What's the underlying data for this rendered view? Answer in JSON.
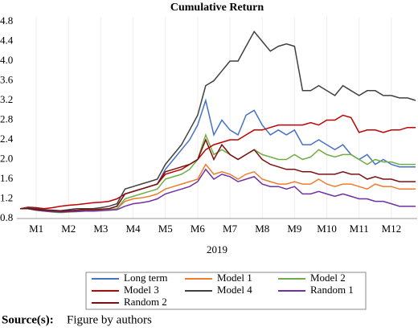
{
  "chart_data": {
    "type": "line",
    "title": "Cumulative Return",
    "x_label": "2019",
    "x": [
      0.5,
      0.75,
      1,
      1.25,
      1.5,
      1.75,
      2,
      2.25,
      2.5,
      2.75,
      3,
      3.25,
      3.5,
      3.75,
      4,
      4.25,
      4.5,
      4.75,
      5,
      5.25,
      5.5,
      5.75,
      6,
      6.25,
      6.5,
      6.75,
      7,
      7.25,
      7.5,
      7.75,
      8,
      8.25,
      8.5,
      8.75,
      9,
      9.25,
      9.5,
      9.75,
      10,
      10.25,
      10.5,
      10.75,
      11,
      11.25,
      11.5,
      11.75,
      12,
      12.25,
      12.5,
      12.75
    ],
    "xlim": [
      0.4,
      12.8
    ],
    "xticks": [
      {
        "value": 1,
        "label": "M1"
      },
      {
        "value": 2,
        "label": "M2"
      },
      {
        "value": 3,
        "label": "M3"
      },
      {
        "value": 4,
        "label": "M4"
      },
      {
        "value": 5,
        "label": "M5"
      },
      {
        "value": 6,
        "label": "M6"
      },
      {
        "value": 7,
        "label": "M7"
      },
      {
        "value": 8,
        "label": "M8"
      },
      {
        "value": 9,
        "label": "M9"
      },
      {
        "value": 10,
        "label": "M10"
      },
      {
        "value": 11,
        "label": "M11"
      },
      {
        "value": 12,
        "label": "M12"
      }
    ],
    "ylim": [
      0.8,
      4.8
    ],
    "yticks": [
      0.8,
      1.2,
      1.6,
      {
        "value": 2,
        "label": "2.0"
      },
      2.4,
      2.8,
      3.2,
      3.6,
      {
        "value": 4,
        "label": "4.0"
      },
      4.4,
      4.8
    ],
    "grid": "x",
    "series": [
      {
        "name": "Long term",
        "color": "#4472c4",
        "values": [
          1.0,
          1.0,
          0.98,
          0.96,
          0.95,
          0.94,
          0.95,
          0.96,
          0.97,
          0.97,
          0.98,
          1.0,
          1.05,
          1.3,
          1.35,
          1.4,
          1.45,
          1.5,
          1.8,
          2.0,
          2.2,
          2.4,
          2.7,
          3.2,
          2.5,
          2.8,
          2.6,
          2.5,
          2.9,
          3.0,
          2.7,
          2.5,
          2.6,
          2.5,
          2.6,
          2.3,
          2.3,
          2.4,
          2.3,
          2.2,
          2.3,
          2.1,
          2.0,
          2.1,
          1.9,
          2.0,
          1.9,
          1.85,
          1.85,
          1.85
        ]
      },
      {
        "name": "Model 1",
        "color": "#ed7d31",
        "values": [
          1.0,
          1.0,
          0.97,
          0.95,
          0.94,
          0.93,
          0.94,
          0.95,
          0.96,
          0.96,
          0.97,
          0.98,
          1.0,
          1.15,
          1.2,
          1.22,
          1.25,
          1.3,
          1.4,
          1.45,
          1.5,
          1.55,
          1.6,
          1.9,
          1.7,
          1.75,
          1.7,
          1.6,
          1.7,
          1.75,
          1.6,
          1.55,
          1.5,
          1.5,
          1.55,
          1.5,
          1.5,
          1.6,
          1.5,
          1.45,
          1.5,
          1.5,
          1.45,
          1.4,
          1.5,
          1.45,
          1.45,
          1.4,
          1.4,
          1.4
        ]
      },
      {
        "name": "Model 2",
        "color": "#70ad47",
        "values": [
          1.0,
          1.0,
          0.97,
          0.95,
          0.93,
          0.92,
          0.93,
          0.94,
          0.95,
          0.95,
          0.96,
          0.98,
          1.0,
          1.2,
          1.25,
          1.3,
          1.35,
          1.4,
          1.6,
          1.65,
          1.7,
          1.8,
          2.0,
          2.5,
          2.1,
          2.2,
          2.1,
          2.0,
          2.1,
          2.2,
          2.1,
          2.05,
          2.0,
          2.0,
          2.1,
          2.0,
          2.05,
          2.2,
          2.1,
          2.05,
          2.1,
          2.1,
          2.0,
          1.9,
          2.0,
          1.95,
          1.95,
          1.9,
          1.9,
          1.9
        ]
      },
      {
        "name": "Model 3",
        "color": "#c00000",
        "values": [
          1.0,
          1.03,
          1.02,
          1.0,
          1.02,
          1.05,
          1.07,
          1.08,
          1.1,
          1.12,
          1.13,
          1.15,
          1.2,
          1.3,
          1.35,
          1.4,
          1.45,
          1.5,
          1.7,
          1.75,
          1.8,
          1.9,
          2.0,
          2.2,
          2.3,
          2.35,
          2.4,
          2.4,
          2.5,
          2.6,
          2.6,
          2.65,
          2.7,
          2.7,
          2.7,
          2.7,
          2.75,
          2.7,
          2.8,
          2.8,
          2.9,
          2.85,
          2.55,
          2.6,
          2.6,
          2.55,
          2.6,
          2.6,
          2.65,
          2.65
        ]
      },
      {
        "name": "Model 4",
        "color": "#404040",
        "values": [
          1.0,
          1.02,
          1.0,
          0.98,
          0.97,
          0.96,
          0.98,
          1.0,
          1.0,
          1.0,
          1.02,
          1.05,
          1.1,
          1.4,
          1.45,
          1.5,
          1.55,
          1.6,
          1.9,
          2.1,
          2.3,
          2.6,
          2.9,
          3.5,
          3.6,
          3.8,
          4.0,
          4.0,
          4.3,
          4.6,
          4.4,
          4.2,
          4.3,
          4.35,
          4.3,
          3.4,
          3.4,
          3.5,
          3.4,
          3.3,
          3.5,
          3.4,
          3.3,
          3.4,
          3.4,
          3.3,
          3.3,
          3.25,
          3.25,
          3.2
        ]
      },
      {
        "name": "Random 1",
        "color": "#7030a0",
        "values": [
          1.0,
          1.0,
          0.97,
          0.95,
          0.94,
          0.93,
          0.94,
          0.94,
          0.95,
          0.95,
          0.96,
          0.97,
          0.98,
          1.05,
          1.1,
          1.12,
          1.15,
          1.2,
          1.3,
          1.35,
          1.4,
          1.45,
          1.55,
          1.8,
          1.6,
          1.7,
          1.65,
          1.55,
          1.6,
          1.65,
          1.5,
          1.45,
          1.45,
          1.4,
          1.45,
          1.3,
          1.3,
          1.35,
          1.3,
          1.25,
          1.3,
          1.25,
          1.2,
          1.2,
          1.15,
          1.15,
          1.1,
          1.05,
          1.05,
          1.05
        ]
      },
      {
        "name": "Random 2",
        "color": "#7b1010",
        "values": [
          1.0,
          1.0,
          0.98,
          0.97,
          0.96,
          0.95,
          0.96,
          0.97,
          0.98,
          0.98,
          0.99,
          1.0,
          1.05,
          1.3,
          1.35,
          1.4,
          1.45,
          1.5,
          1.75,
          1.8,
          1.85,
          1.9,
          2.0,
          2.4,
          2.0,
          2.3,
          2.1,
          2.0,
          2.1,
          2.2,
          2.0,
          1.9,
          1.85,
          1.8,
          1.8,
          1.75,
          1.75,
          1.7,
          1.7,
          1.7,
          1.75,
          1.7,
          1.7,
          1.6,
          1.65,
          1.6,
          1.6,
          1.55,
          1.55,
          1.55
        ]
      }
    ]
  },
  "source_label": "Source(s):",
  "source_text": "Figure by authors"
}
